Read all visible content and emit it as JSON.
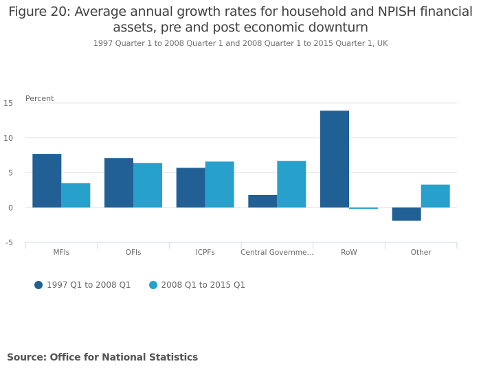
{
  "chart_data": {
    "type": "bar",
    "title": "Figure 20: Average annual growth rates for household and NPISH financial assets, pre and post economic downturn",
    "title_lines": [
      "Figure 20: Average annual growth rates for household and NPISH financial",
      "assets, pre and post economic downturn"
    ],
    "subtitle": "1997 Quarter 1 to 2008 Quarter 1 and 2008 Quarter 1 to 2015 Quarter 1, UK",
    "xlabel": "",
    "ylabel": "Percent",
    "ylim": [
      -5,
      15
    ],
    "yticks": [
      15,
      10,
      5,
      0,
      -5
    ],
    "grid": true,
    "legend_position": "bottom-left",
    "categories": [
      "MFIs",
      "OFIs",
      "ICPFs",
      "Central Governme...",
      "RoW",
      "Other"
    ],
    "series": [
      {
        "name": "1997 Q1 to 2008 Q1",
        "color": "#206095",
        "values": [
          7.7,
          7.1,
          5.7,
          1.8,
          13.9,
          -1.9
        ]
      },
      {
        "name": "2008 Q1 to 2015 Q1",
        "color": "#27a0cc",
        "values": [
          3.5,
          6.4,
          6.6,
          6.7,
          -0.2,
          3.3
        ]
      }
    ]
  },
  "source": "Source: Office for National Statistics"
}
